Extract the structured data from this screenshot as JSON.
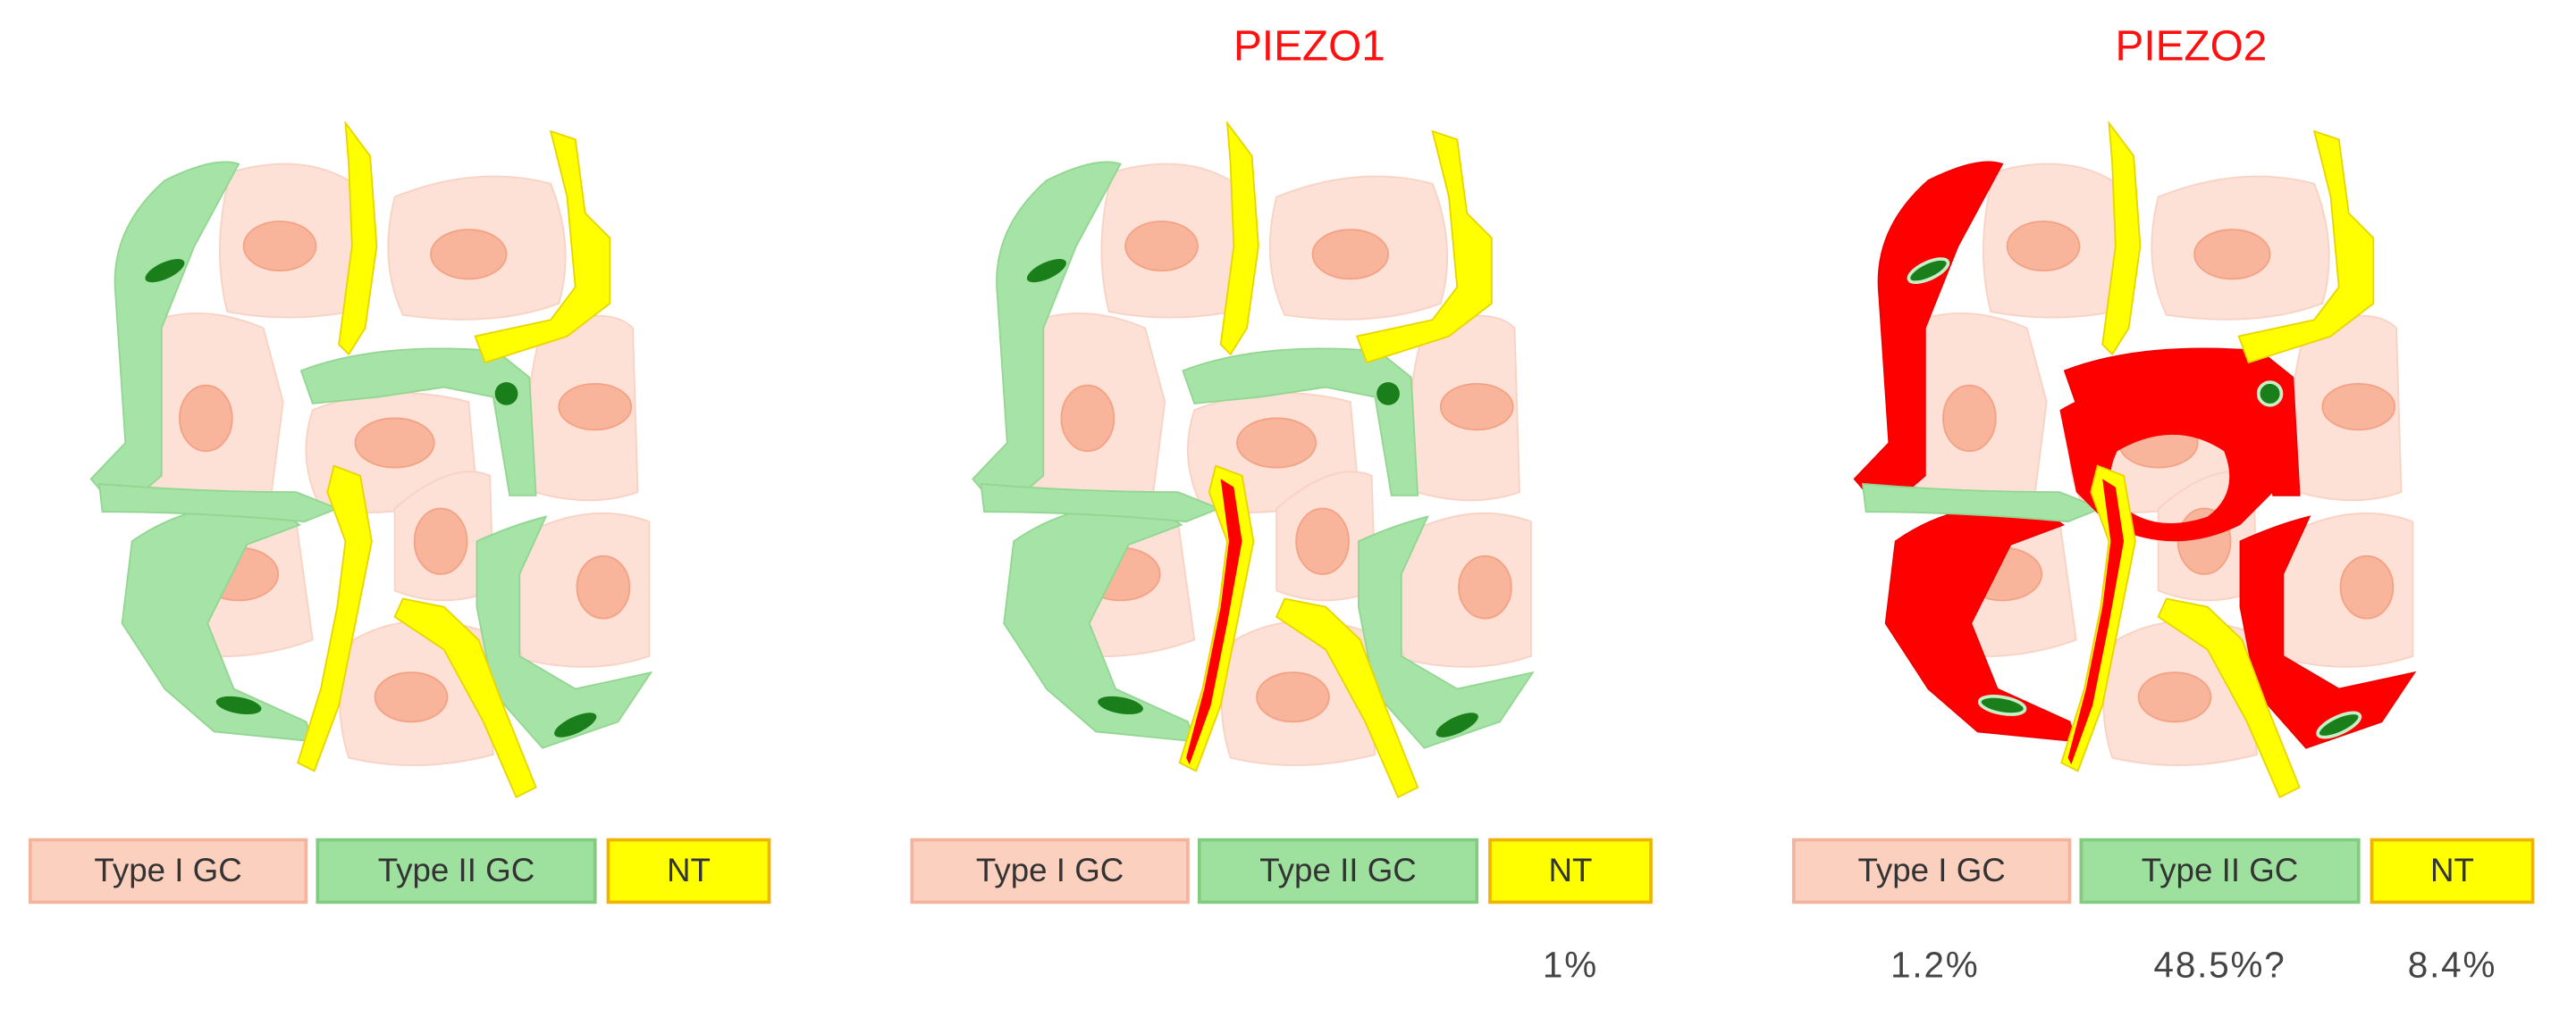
{
  "panels": [
    {
      "legend": [
        {
          "label": "Type I GC"
        },
        {
          "label": "Type II GC"
        },
        {
          "label": "NT"
        }
      ]
    },
    {
      "title": "PIEZO1",
      "legend": [
        {
          "label": "Type I GC"
        },
        {
          "label": "Type II GC"
        },
        {
          "label": "NT",
          "percentage": "1%"
        }
      ]
    },
    {
      "title": "PIEZO2",
      "legend": [
        {
          "label": "Type I GC",
          "percentage": "1.2%"
        },
        {
          "label": "Type II GC",
          "percentage": "48.5%?"
        },
        {
          "label": "NT",
          "percentage": "8.4%"
        }
      ]
    }
  ]
}
